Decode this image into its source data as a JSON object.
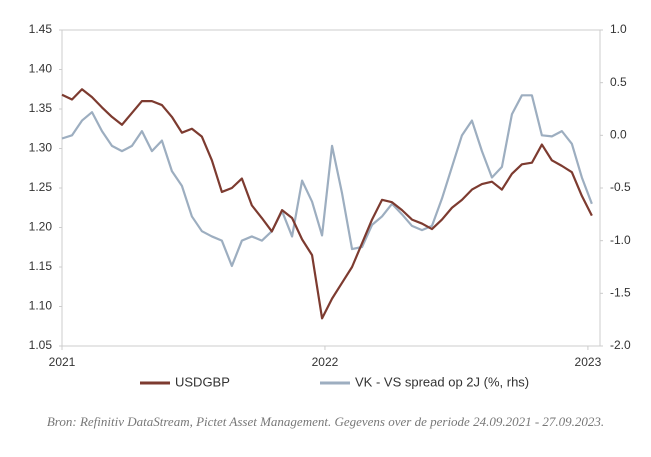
{
  "chart_data": {
    "type": "line",
    "x": [
      2021,
      2021.038,
      2021.076,
      2021.114,
      2021.152,
      2021.19,
      2021.228,
      2021.266,
      2021.304,
      2021.342,
      2021.38,
      2021.418,
      2021.456,
      2021.494,
      2021.532,
      2021.57,
      2021.608,
      2021.646,
      2021.684,
      2021.722,
      2021.76,
      2021.798,
      2021.837,
      2021.875,
      2021.913,
      2021.951,
      2021.989,
      2022.027,
      2022.065,
      2022.103,
      2022.141,
      2022.179,
      2022.217,
      2022.255,
      2022.293,
      2022.331,
      2022.369,
      2022.407,
      2022.445,
      2022.483,
      2022.521,
      2022.559,
      2022.597,
      2022.635,
      2022.673,
      2022.711,
      2022.749,
      2022.787,
      2022.825,
      2022.863,
      2022.901,
      2022.939,
      2022.977,
      2023.015
    ],
    "xlim": [
      2021,
      2023.046
    ],
    "xticks": [
      2021,
      2022,
      2023
    ],
    "ylim": [
      1.05,
      1.45
    ],
    "yticks": [
      1.05,
      {
        "value": 1.1,
        "label": "1.10"
      },
      1.15,
      {
        "value": 1.2,
        "label": "1.20"
      },
      1.25,
      {
        "value": 1.3,
        "label": "1.30"
      },
      1.35,
      {
        "value": 1.4,
        "label": "1.40"
      },
      1.45
    ],
    "y2lim": [
      -2.0,
      1.0
    ],
    "y2ticks": [
      {
        "value": -2.0,
        "label": "-2.0"
      },
      -1.5,
      {
        "value": -1.0,
        "label": "-1.0"
      },
      -0.5,
      {
        "value": 0.0,
        "label": "0.0"
      },
      0.5,
      {
        "value": 1.0,
        "label": "1.0"
      }
    ],
    "legend": "bottom",
    "series": [
      {
        "name": "USDGBP",
        "color": "#7d3b30",
        "values": [
          1.368,
          1.362,
          1.375,
          1.365,
          1.352,
          1.34,
          1.33,
          1.345,
          1.36,
          1.36,
          1.355,
          1.34,
          1.32,
          1.325,
          1.315,
          1.285,
          1.245,
          1.25,
          1.262,
          1.228,
          1.212,
          1.195,
          1.222,
          1.212,
          1.185,
          1.165,
          1.085,
          1.11,
          1.13,
          1.15,
          1.18,
          1.21,
          1.235,
          1.232,
          1.222,
          1.21,
          1.205,
          1.198,
          1.21,
          1.225,
          1.235,
          1.248,
          1.255,
          1.258,
          1.248,
          1.268,
          1.28,
          1.282,
          1.305,
          1.285,
          1.278,
          1.27,
          1.24,
          1.215
        ]
      },
      {
        "name": "VK - VS spread op 2J (%, rhs)",
        "color": "#9daec0",
        "axis": "y2",
        "values": [
          -0.03,
          0.0,
          0.14,
          0.22,
          0.04,
          -0.1,
          -0.15,
          -0.1,
          0.04,
          -0.15,
          -0.05,
          -0.34,
          -0.48,
          -0.77,
          -0.91,
          -0.96,
          -1.0,
          -1.24,
          -1.0,
          -0.96,
          -1.0,
          -0.91,
          -0.72,
          -0.96,
          -0.43,
          -0.63,
          -0.95,
          -0.1,
          -0.55,
          -1.08,
          -1.06,
          -0.85,
          -0.77,
          -0.65,
          -0.75,
          -0.86,
          -0.9,
          -0.86,
          -0.6,
          -0.3,
          0.0,
          0.14,
          -0.15,
          -0.4,
          -0.3,
          0.2,
          0.38,
          0.38,
          0.0,
          -0.01,
          0.04,
          -0.08,
          -0.4,
          -0.65
        ]
      }
    ],
    "source": "Bron: Refinitiv DataStream, Pictet Asset Management. Gegevens over de periode 24.09.2021 - 27.09.2023."
  }
}
